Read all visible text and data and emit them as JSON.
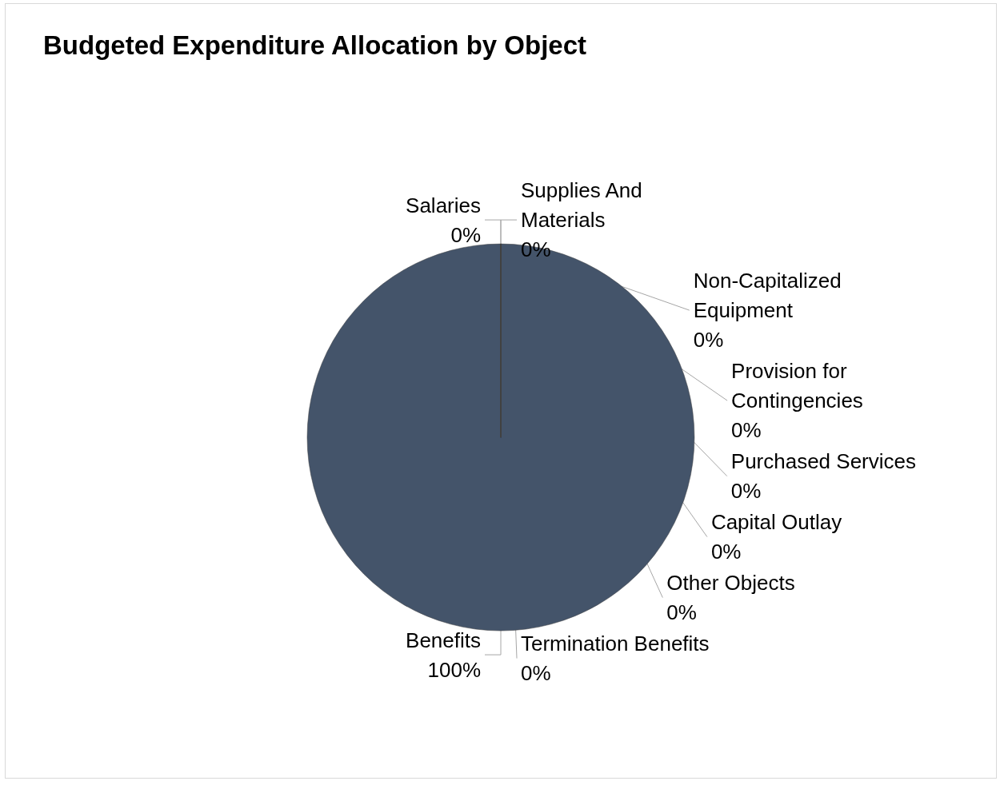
{
  "chart_data": {
    "type": "pie",
    "title": "Budgeted Expenditure Allocation by Object",
    "categories": [
      "Salaries",
      "Benefits",
      "Purchased Services",
      "Supplies And Materials",
      "Capital Outlay",
      "Other Objects",
      "Non-Capitalized Equipment",
      "Termination Benefits",
      "Provision for Contingencies"
    ],
    "values": [
      0,
      100,
      0,
      0,
      0,
      0,
      0,
      0,
      0
    ],
    "colors": [
      "#4472c4",
      "#44546a",
      "#ed7d31",
      "#a5a5a5",
      "#ffc000",
      "#5b9bd5",
      "#70ad47",
      "#264478",
      "#9e480e"
    ],
    "value_labels": [
      "0%",
      "100%",
      "0%",
      "0%",
      "0%",
      "0%",
      "0%",
      "0%",
      "0%"
    ],
    "legend": false
  }
}
